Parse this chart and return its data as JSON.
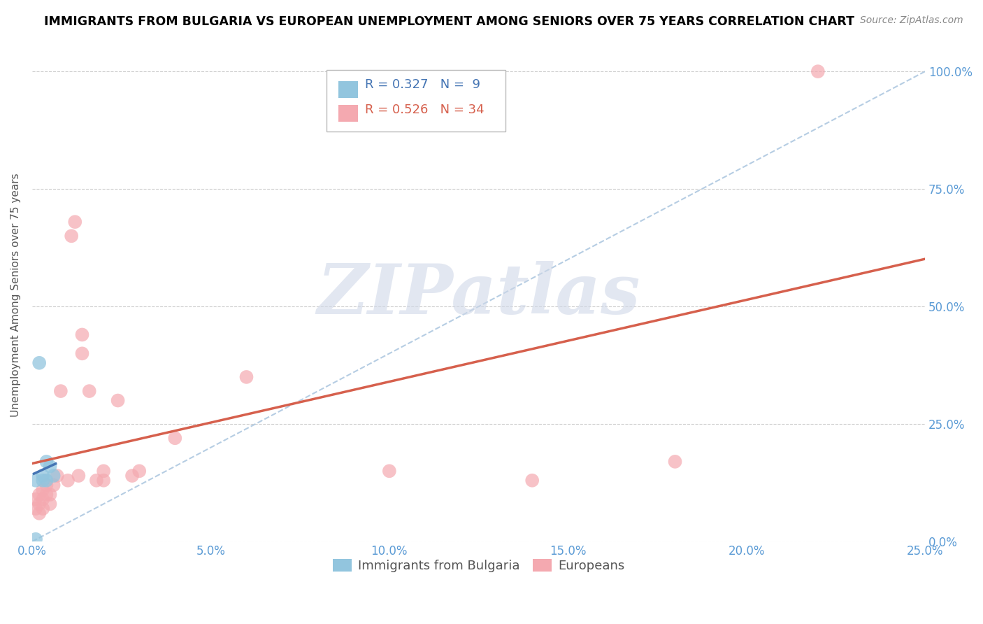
{
  "title": "IMMIGRANTS FROM BULGARIA VS EUROPEAN UNEMPLOYMENT AMONG SENIORS OVER 75 YEARS CORRELATION CHART",
  "source": "Source: ZipAtlas.com",
  "ylabel": "Unemployment Among Seniors over 75 years",
  "xlim": [
    0.0,
    0.25
  ],
  "ylim": [
    0.0,
    1.05
  ],
  "xtick_labels": [
    "0.0%",
    "5.0%",
    "10.0%",
    "15.0%",
    "20.0%",
    "25.0%"
  ],
  "xtick_values": [
    0.0,
    0.05,
    0.1,
    0.15,
    0.2,
    0.25
  ],
  "ytick_labels": [
    "0.0%",
    "25.0%",
    "50.0%",
    "75.0%",
    "100.0%"
  ],
  "ytick_values": [
    0.0,
    0.25,
    0.5,
    0.75,
    1.0
  ],
  "bulgaria_R": 0.327,
  "bulgaria_N": 9,
  "european_R": 0.526,
  "european_N": 34,
  "bulgaria_color": "#92c5de",
  "european_color": "#f4a9b0",
  "bulgaria_line_color": "#4575b4",
  "european_line_color": "#d6604d",
  "axis_label_color": "#5b9bd5",
  "watermark_text": "ZIPatlas",
  "bulgaria_points": [
    [
      0.001,
      0.13
    ],
    [
      0.002,
      0.38
    ],
    [
      0.003,
      0.14
    ],
    [
      0.003,
      0.13
    ],
    [
      0.004,
      0.13
    ],
    [
      0.004,
      0.17
    ],
    [
      0.005,
      0.16
    ],
    [
      0.006,
      0.14
    ],
    [
      0.001,
      0.005
    ]
  ],
  "european_points": [
    [
      0.001,
      0.07
    ],
    [
      0.001,
      0.09
    ],
    [
      0.002,
      0.06
    ],
    [
      0.002,
      0.08
    ],
    [
      0.002,
      0.1
    ],
    [
      0.003,
      0.07
    ],
    [
      0.003,
      0.09
    ],
    [
      0.003,
      0.11
    ],
    [
      0.004,
      0.1
    ],
    [
      0.004,
      0.12
    ],
    [
      0.005,
      0.08
    ],
    [
      0.005,
      0.1
    ],
    [
      0.006,
      0.12
    ],
    [
      0.007,
      0.14
    ],
    [
      0.008,
      0.32
    ],
    [
      0.01,
      0.13
    ],
    [
      0.011,
      0.65
    ],
    [
      0.012,
      0.68
    ],
    [
      0.013,
      0.14
    ],
    [
      0.014,
      0.44
    ],
    [
      0.014,
      0.4
    ],
    [
      0.016,
      0.32
    ],
    [
      0.018,
      0.13
    ],
    [
      0.02,
      0.15
    ],
    [
      0.02,
      0.13
    ],
    [
      0.024,
      0.3
    ],
    [
      0.028,
      0.14
    ],
    [
      0.03,
      0.15
    ],
    [
      0.04,
      0.22
    ],
    [
      0.06,
      0.35
    ],
    [
      0.1,
      0.15
    ],
    [
      0.14,
      0.13
    ],
    [
      0.18,
      0.17
    ],
    [
      0.22,
      1.0
    ]
  ]
}
